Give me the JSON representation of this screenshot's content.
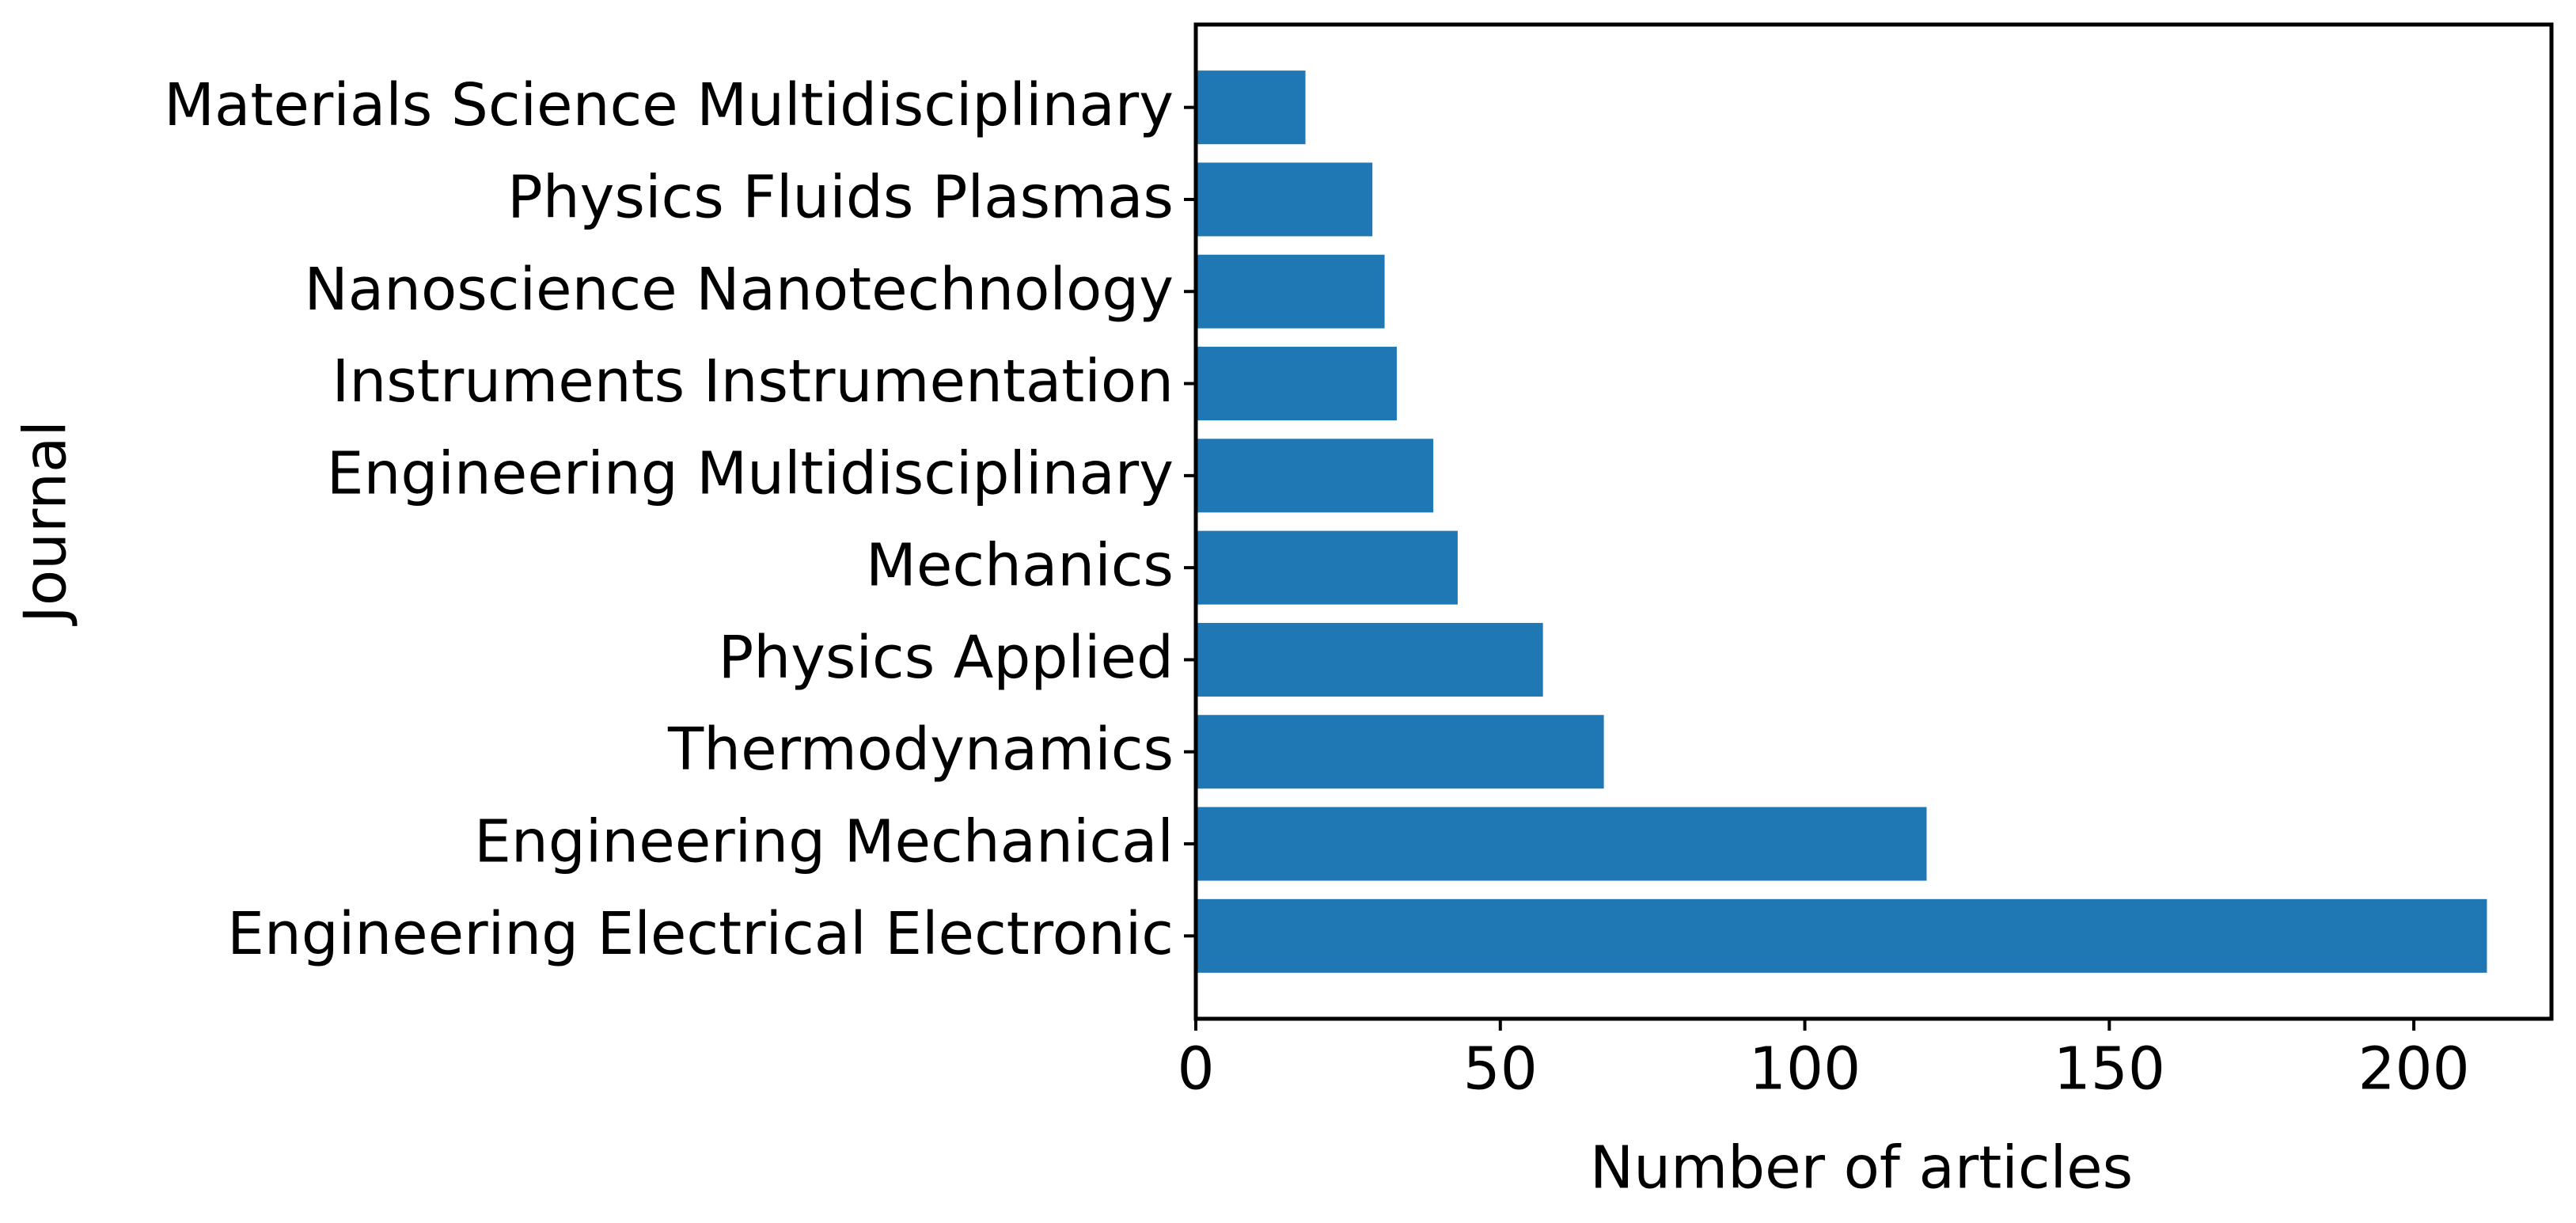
{
  "chart_data": {
    "type": "barh",
    "xlabel": "Number of articles",
    "ylabel": "Journal",
    "categories": [
      "Engineering Electrical Electronic",
      "Engineering Mechanical",
      "Thermodynamics",
      "Physics Applied",
      "Mechanics",
      "Engineering Multidisciplinary",
      "Instruments Instrumentation",
      "Nanoscience Nanotechnology",
      "Physics Fluids Plasmas",
      "Materials Science Multidisciplinary"
    ],
    "values": [
      212,
      120,
      67,
      57,
      43,
      39,
      33,
      31,
      29,
      18
    ],
    "color": "#1f77b4",
    "xlim": [
      0,
      222.6
    ],
    "xticks": [
      0,
      50,
      100,
      150,
      200
    ]
  }
}
